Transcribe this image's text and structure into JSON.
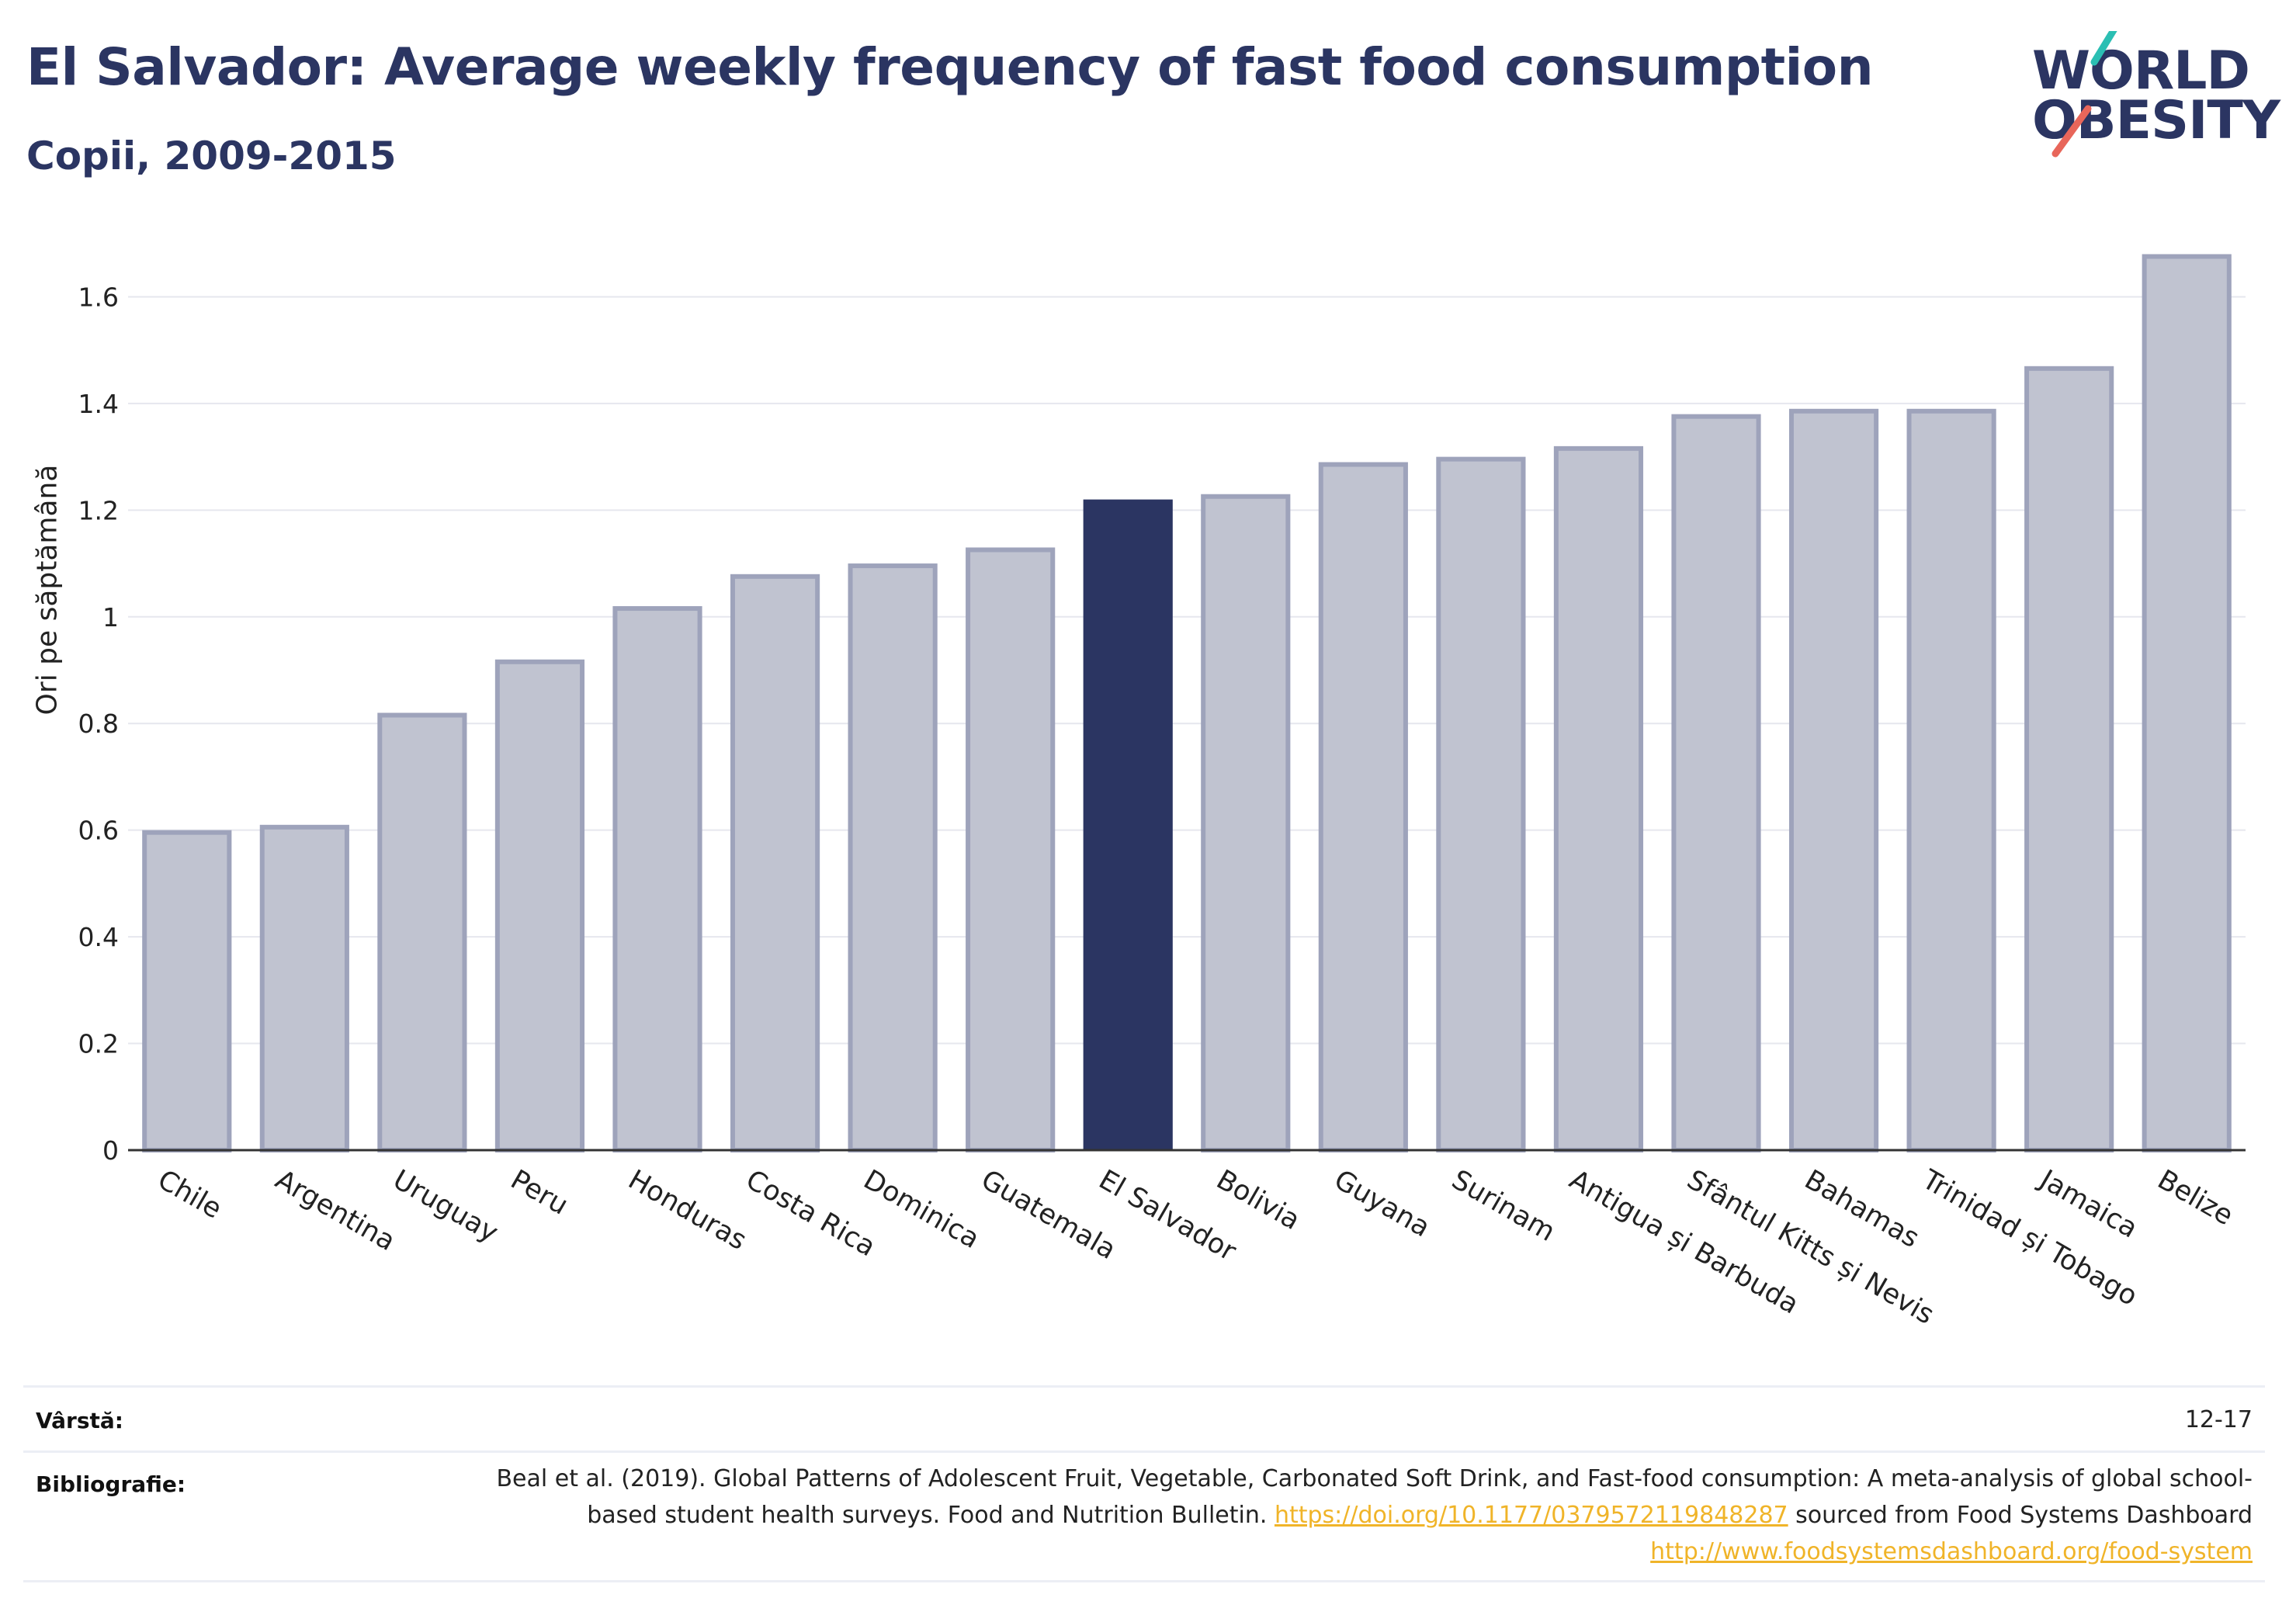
{
  "header": {
    "title": "El Salvador: Average weekly frequency of fast food consumption",
    "subtitle": "Copii, 2009-2015"
  },
  "logo": {
    "line1": "WORLD",
    "line2": "OBESITY",
    "colors": {
      "teal": "#2bbfb3",
      "coral": "#e8665a",
      "navy": "#2b3562"
    }
  },
  "chart_data": {
    "type": "bar",
    "ylabel": "Ori pe săptămână",
    "ylim": [
      0,
      1.72
    ],
    "yticks": [
      0,
      0.2,
      0.4,
      0.6,
      0.8,
      1,
      1.2,
      1.4,
      1.6
    ],
    "ytick_labels": [
      "0",
      "0.2",
      "0.4",
      "0.6",
      "0.8",
      "1",
      "1.2",
      "1.4",
      "1.6"
    ],
    "grid": true,
    "highlight": "El Salvador",
    "colors": {
      "bar": "#c0c3d0",
      "bar_border": "#9ea3bb",
      "highlight": "#2b3562",
      "grid": "#e6e7ee",
      "axis": "#333333"
    },
    "categories": [
      "Chile",
      "Argentina",
      "Uruguay",
      "Peru",
      "Honduras",
      "Costa Rica",
      "Dominica",
      "Guatemala",
      "El Salvador",
      "Bolivia",
      "Guyana",
      "Surinam",
      "Antigua și Barbuda",
      "Sfântul Kitts și Nevis",
      "Bahamas",
      "Trinidad și Tobago",
      "Jamaica",
      "Belize"
    ],
    "values": [
      0.6,
      0.61,
      0.82,
      0.92,
      1.02,
      1.08,
      1.1,
      1.13,
      1.22,
      1.23,
      1.29,
      1.3,
      1.32,
      1.38,
      1.39,
      1.39,
      1.47,
      1.68
    ]
  },
  "meta": {
    "age_label": "Vârstă:",
    "age_value": "12-17",
    "bib_label": "Bibliografie:",
    "bib_text_1": "Beal et al. (2019). Global Patterns of Adolescent Fruit, Vegetable, Carbonated Soft Drink, and Fast-food consumption: A meta-analysis of global school-based student health surveys. Food and Nutrition Bulletin.",
    "bib_link_1": "https://doi.org/10.1177/0379572119848287",
    "bib_text_2": "sourced from Food Systems Dashboard",
    "bib_link_2": "http://www.foodsystemsdashboard.org/food-system"
  }
}
